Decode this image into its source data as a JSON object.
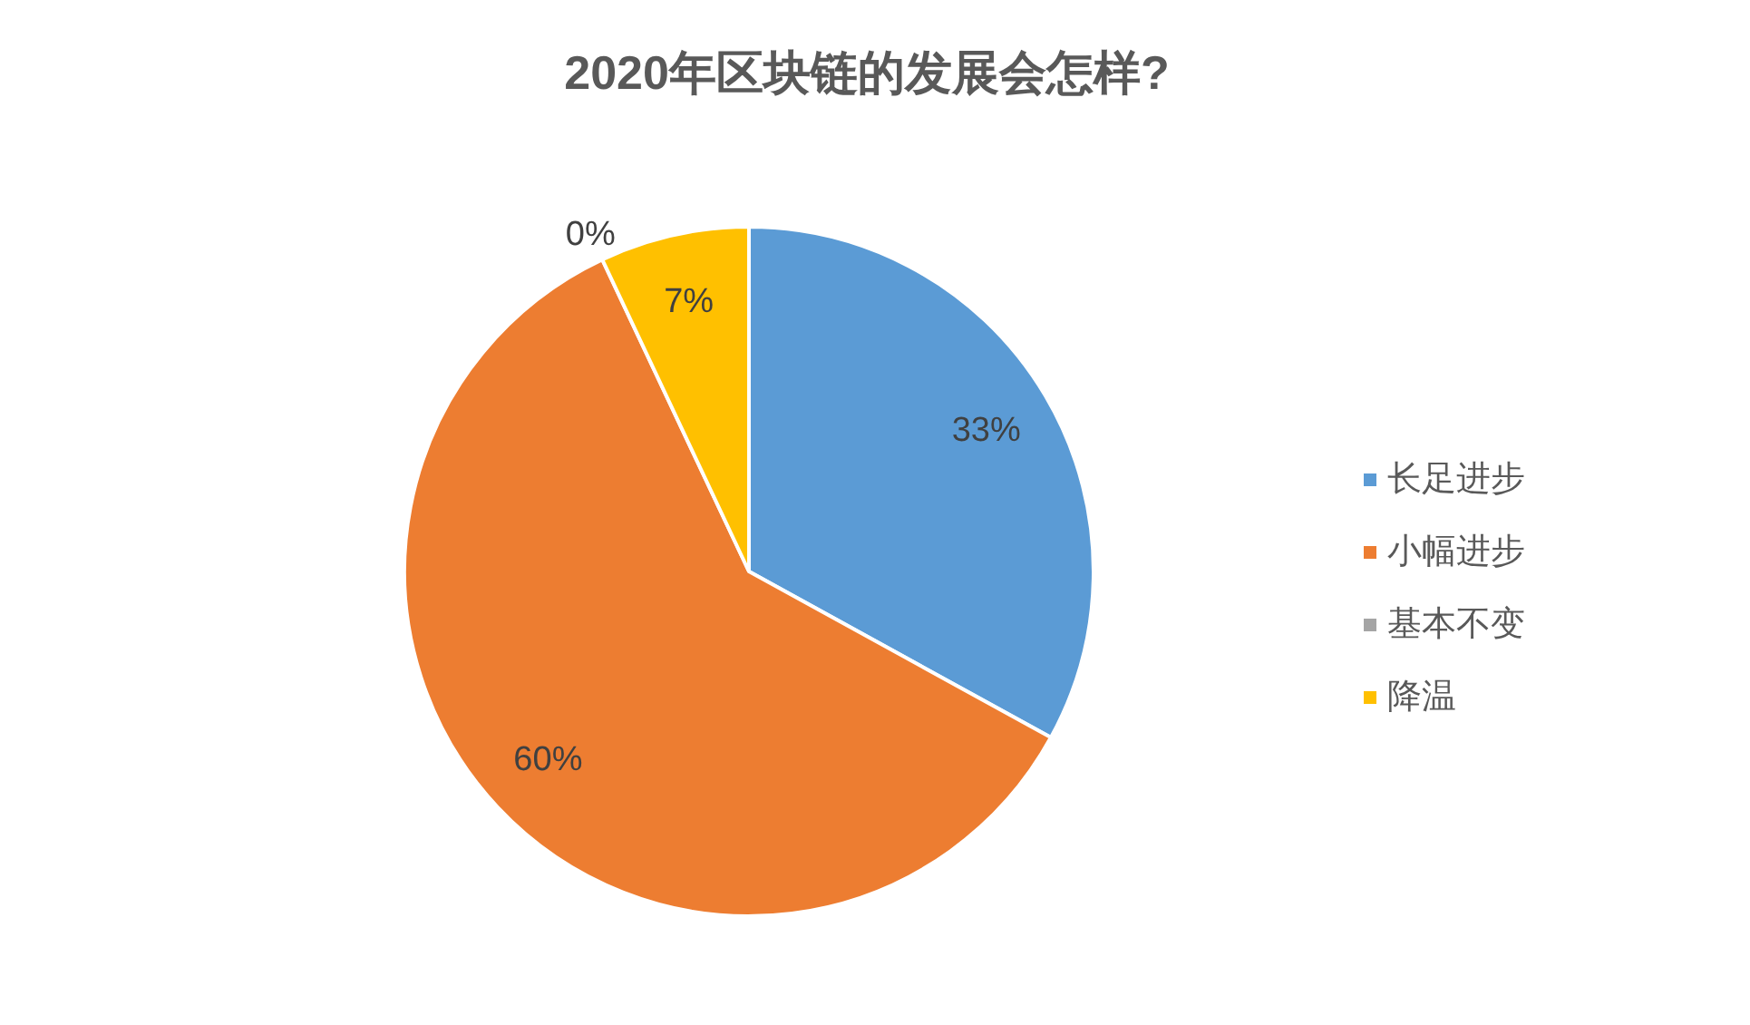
{
  "chart_data": {
    "type": "pie",
    "title": "2020年区块链的发展会怎样?",
    "categories": [
      "长足进步",
      "小幅进步",
      "基本不变",
      "降温"
    ],
    "values": [
      33,
      60,
      0,
      7
    ],
    "colors": [
      "#5b9bd5",
      "#ed7d31",
      "#a5a5a5",
      "#ffc000"
    ],
    "value_labels": [
      "33%",
      "60%",
      "0%",
      "7%"
    ],
    "legend": "right"
  }
}
